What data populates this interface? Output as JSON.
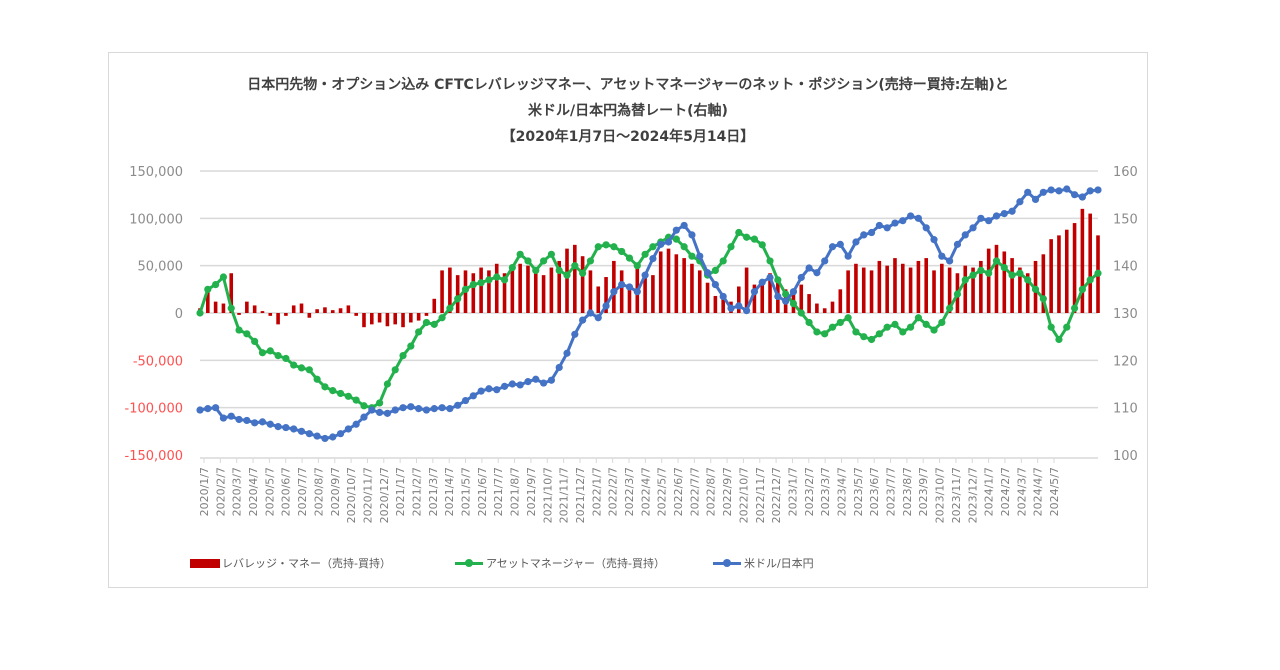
{
  "title": {
    "line1": "日本円先物・オプション込み CFTCレバレッジマネー、アセットマネージャーのネット・ポジション(売持ー買持:左軸)と",
    "line2": "米ドル/日本円為替レート(右軸)",
    "line3": "【2020年1月7日～2024年5月14日】"
  },
  "legend": {
    "leveraged": "レバレッジ・マネー（売持-買持）",
    "asset": "アセットマネージャー（売持-買持）",
    "usdjpy": "米ドル/日本円"
  },
  "colors": {
    "leveraged": "#c00000",
    "asset": "#22b14c",
    "usdjpy": "#4472c4",
    "grid": "#d9d9d9",
    "neg_label": "#ff5050",
    "pos_label": "#8c8c8c"
  },
  "chart_data": {
    "type": "bar+line",
    "title": "日本円先物・オプション込み CFTCレバレッジマネー、アセットマネージャーのネット・ポジション(売持ー買持:左軸)と米ドル/日本円為替レート(右軸)【2020年1月7日～2024年5月14日】",
    "xlabel": "",
    "ylabel_left": "ネット・ポジション(売持ー買持)",
    "ylabel_right": "米ドル/日本円",
    "ylim_left": [
      -150000,
      150000
    ],
    "ylim_right": [
      100,
      160
    ],
    "yticks_left": [
      150000,
      100000,
      50000,
      0,
      -50000,
      -100000,
      -150000
    ],
    "ytick_labels_left": [
      "150,000",
      "100,000",
      "50,000",
      "0",
      "-50,000",
      "-100,000",
      "-150,000"
    ],
    "yticks_right": [
      160,
      150,
      140,
      130,
      120,
      110,
      100
    ],
    "grid": true,
    "legend_position": "bottom",
    "x_tick_labels": [
      "2020/1/7",
      "2020/2/7",
      "2020/3/7",
      "2020/4/7",
      "2020/5/7",
      "2020/6/7",
      "2020/7/7",
      "2020/8/7",
      "2020/9/7",
      "2020/10/7",
      "2020/11/7",
      "2020/12/7",
      "2021/1/7",
      "2021/2/7",
      "2021/3/7",
      "2021/4/7",
      "2021/5/7",
      "2021/6/7",
      "2021/7/7",
      "2021/8/7",
      "2021/9/7",
      "2021/10/7",
      "2021/11/7",
      "2021/12/7",
      "2022/1/7",
      "2022/2/7",
      "2022/3/7",
      "2022/4/7",
      "2022/5/7",
      "2022/6/7",
      "2022/7/7",
      "2022/8/7",
      "2022/9/7",
      "2022/10/7",
      "2022/11/7",
      "2022/12/7",
      "2023/1/7",
      "2023/2/7",
      "2023/3/7",
      "2023/4/7",
      "2023/5/7",
      "2023/6/7",
      "2023/7/7",
      "2023/8/7",
      "2023/9/7",
      "2023/10/7",
      "2023/11/7",
      "2023/12/7",
      "2024/1/7",
      "2024/2/7",
      "2024/3/7",
      "2024/4/7",
      "2024/5/7"
    ],
    "x_step": "biweekly from 2020/1/7 to 2024/5/14",
    "series": [
      {
        "name": "レバレッジ・マネー（売持-買持）",
        "type": "bar",
        "axis": "left",
        "values": [
          5000,
          25000,
          12000,
          10000,
          42000,
          -2000,
          12000,
          8000,
          2000,
          -3000,
          -12000,
          -3000,
          8000,
          10000,
          -5000,
          4000,
          6000,
          3000,
          5000,
          8000,
          -3000,
          -15000,
          -12000,
          -10000,
          -14000,
          -12000,
          -15000,
          -10000,
          -8000,
          -3000,
          15000,
          45000,
          48000,
          40000,
          45000,
          42000,
          48000,
          45000,
          52000,
          42000,
          48000,
          52000,
          50000,
          45000,
          40000,
          48000,
          55000,
          68000,
          72000,
          60000,
          45000,
          28000,
          38000,
          55000,
          45000,
          30000,
          52000,
          38000,
          40000,
          65000,
          68000,
          62000,
          58000,
          52000,
          45000,
          32000,
          18000,
          15000,
          12000,
          28000,
          48000,
          30000,
          35000,
          42000,
          38000,
          25000,
          22000,
          30000,
          20000,
          10000,
          5000,
          12000,
          25000,
          45000,
          52000,
          48000,
          45000,
          55000,
          50000,
          58000,
          52000,
          48000,
          55000,
          58000,
          45000,
          52000,
          48000,
          42000,
          50000,
          48000,
          55000,
          68000,
          72000,
          65000,
          58000,
          48000,
          42000,
          55000,
          62000,
          78000,
          82000,
          88000,
          95000,
          110000,
          105000,
          82000
        ]
      },
      {
        "name": "アセットマネージャー（売持-買持）",
        "type": "line",
        "axis": "left",
        "values": [
          0,
          25000,
          30000,
          38000,
          5000,
          -18000,
          -22000,
          -30000,
          -42000,
          -40000,
          -45000,
          -48000,
          -55000,
          -58000,
          -60000,
          -70000,
          -78000,
          -82000,
          -85000,
          -88000,
          -92000,
          -98000,
          -100000,
          -95000,
          -75000,
          -60000,
          -45000,
          -35000,
          -20000,
          -10000,
          -12000,
          -5000,
          5000,
          15000,
          25000,
          30000,
          32000,
          35000,
          38000,
          35000,
          48000,
          62000,
          55000,
          45000,
          55000,
          62000,
          45000,
          40000,
          50000,
          42000,
          55000,
          70000,
          72000,
          70000,
          65000,
          58000,
          50000,
          62000,
          70000,
          75000,
          80000,
          78000,
          70000,
          60000,
          55000,
          40000,
          45000,
          55000,
          70000,
          85000,
          80000,
          78000,
          72000,
          55000,
          35000,
          20000,
          10000,
          0,
          -10000,
          -20000,
          -22000,
          -15000,
          -10000,
          -5000,
          -20000,
          -25000,
          -28000,
          -22000,
          -15000,
          -12000,
          -20000,
          -15000,
          -5000,
          -12000,
          -18000,
          -10000,
          5000,
          20000,
          35000,
          40000,
          45000,
          42000,
          55000,
          48000,
          40000,
          42000,
          35000,
          25000,
          15000,
          -15000,
          -28000,
          -15000,
          5000,
          25000,
          35000,
          42000
        ]
      },
      {
        "name": "米ドル/日本円",
        "type": "line",
        "axis": "right",
        "values": [
          109.5,
          109.8,
          110.0,
          107.8,
          108.2,
          107.5,
          107.3,
          106.8,
          107.0,
          106.5,
          106.0,
          105.8,
          105.5,
          105.0,
          104.5,
          104.0,
          103.5,
          103.8,
          104.5,
          105.5,
          106.5,
          108.0,
          109.5,
          109.0,
          108.8,
          109.5,
          110.0,
          110.2,
          109.8,
          109.5,
          109.8,
          110.0,
          109.8,
          110.5,
          111.5,
          112.5,
          113.5,
          114.0,
          113.8,
          114.5,
          115.0,
          114.8,
          115.5,
          116.0,
          115.2,
          115.8,
          118.5,
          121.5,
          125.5,
          128.5,
          130.0,
          129.0,
          131.5,
          134.5,
          136.0,
          135.5,
          134.5,
          138.0,
          141.5,
          144.5,
          145.0,
          147.5,
          148.5,
          146.5,
          142.0,
          138.5,
          136.0,
          133.5,
          131.0,
          131.5,
          130.5,
          134.5,
          136.5,
          137.5,
          133.5,
          132.5,
          134.5,
          137.5,
          139.5,
          138.5,
          141.0,
          144.0,
          144.5,
          142.0,
          145.0,
          146.5,
          147.0,
          148.5,
          148.0,
          149.0,
          149.5,
          150.5,
          150.0,
          148.0,
          145.5,
          142.0,
          141.0,
          144.5,
          146.5,
          148.0,
          150.0,
          149.5,
          150.5,
          151.0,
          151.5,
          153.5,
          155.5,
          154.0,
          155.5,
          156.0,
          155.8,
          156.2,
          155.0,
          154.5,
          155.8,
          156.0
        ]
      }
    ]
  }
}
